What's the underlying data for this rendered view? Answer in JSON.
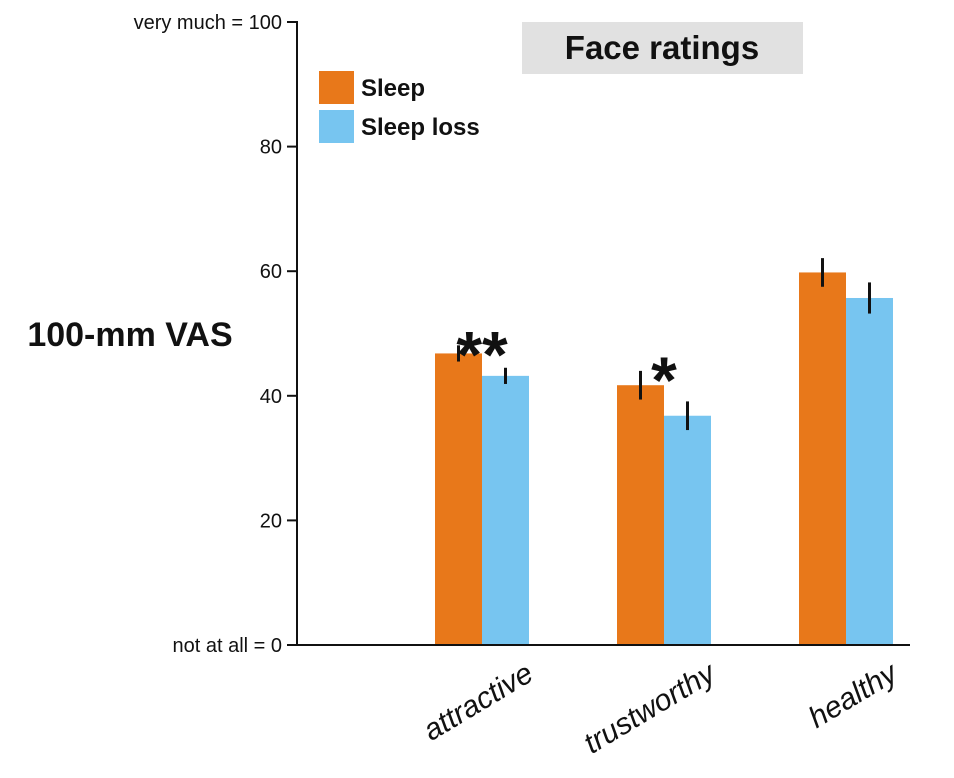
{
  "chart_data": {
    "type": "bar",
    "title": "Face ratings",
    "ylabel": "100-mm VAS",
    "xlabel": "",
    "ylim": [
      0,
      100
    ],
    "yticks": [
      {
        "value": 0,
        "label": "not at all = 0"
      },
      {
        "value": 20,
        "label": "20"
      },
      {
        "value": 40,
        "label": "40"
      },
      {
        "value": 60,
        "label": "60"
      },
      {
        "value": 80,
        "label": "80"
      },
      {
        "value": 100,
        "label": "very much = 100"
      }
    ],
    "categories": [
      "attractive",
      "trustworthy",
      "healthy"
    ],
    "series": [
      {
        "name": "Sleep",
        "color": "#E8781A",
        "values": [
          46.8,
          41.7,
          59.8
        ],
        "errors": [
          1.3,
          2.3,
          2.3
        ]
      },
      {
        "name": "Sleep loss",
        "color": "#77C5F0",
        "values": [
          43.2,
          36.8,
          55.7
        ],
        "errors": [
          1.3,
          2.3,
          2.5
        ]
      }
    ],
    "annotations": [
      "**",
      "*",
      ""
    ],
    "legend": "top-left",
    "grid": false,
    "title_background": "#E1E1E1"
  }
}
